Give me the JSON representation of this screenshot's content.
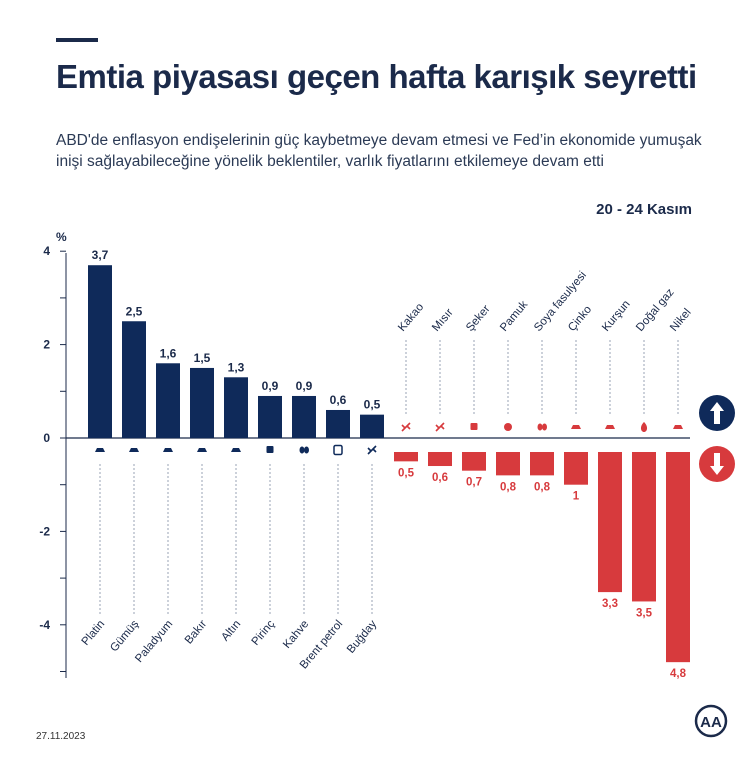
{
  "header": {
    "title": "Emtia piyasası geçen hafta karışık seyretti",
    "subtitle": "ABD'de enflasyon endişelerinin güç kaybetmeye devam etmesi ve Fed’in ekonomide yumuşak inişi sağlayabileceğine yönelik beklentiler, varlık fiyatlarını etkilemeye devam etti",
    "date_range": "20 - 24 Kasım"
  },
  "footer": {
    "date": "27.11.2023",
    "logo_text": "AA"
  },
  "colors": {
    "positive": "#0f2a5a",
    "negative": "#d73a3d",
    "text": "#1b2a4a"
  },
  "legend": {
    "up_icon": "arrow-up-icon",
    "down_icon": "arrow-down-icon"
  },
  "chart_data": {
    "type": "bar",
    "ylabel": "%",
    "ylim": [
      -5,
      4
    ],
    "yticks": [
      4,
      2,
      0,
      -2,
      -4
    ],
    "ytick_labels": [
      "4",
      "2",
      "0",
      "-2",
      "-4"
    ],
    "categories": [
      "Platin",
      "Gümüş",
      "Paladyum",
      "Bakır",
      "Altın",
      "Pirinç",
      "Kahve",
      "Brent petrol",
      "Buğday",
      "Kakao",
      "Mısır",
      "Şeker",
      "Pamuk",
      "Soya fasulyesi",
      "Çinko",
      "Kurşun",
      "Doğal gaz",
      "Nikel"
    ],
    "values": [
      3.7,
      2.5,
      1.6,
      1.5,
      1.3,
      0.9,
      0.9,
      0.6,
      0.5,
      -0.5,
      -0.6,
      -0.7,
      -0.8,
      -0.8,
      -1,
      -3.3,
      -3.5,
      -4.8
    ],
    "value_labels": [
      "3,7",
      "2,5",
      "1,6",
      "1,5",
      "1,3",
      "0,9",
      "0,9",
      "0,6",
      "0,5",
      "0,5",
      "0,6",
      "0,7",
      "0,8",
      "0,8",
      "1",
      "3,3",
      "3,5",
      "4,8"
    ],
    "icons": [
      "ingot-icon",
      "ingot-icon",
      "ingot-icon",
      "ingot-icon",
      "ingot-icon",
      "rice-bag-icon",
      "coffee-bean-icon",
      "oil-barrel-icon",
      "wheat-icon",
      "cocoa-icon",
      "corn-icon",
      "sugar-icon",
      "cotton-icon",
      "soybean-icon",
      "ingot-icon",
      "ingot-icon",
      "gas-flame-icon",
      "ingot-icon"
    ]
  }
}
